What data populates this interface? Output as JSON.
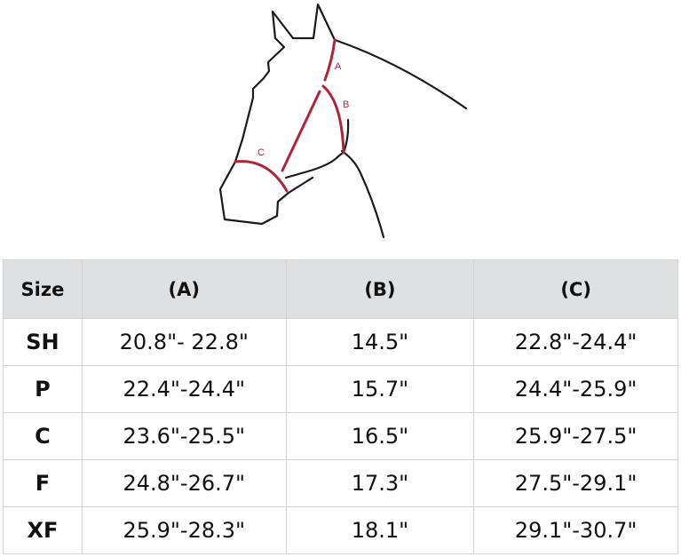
{
  "diagram": {
    "labels": {
      "a": "A",
      "b": "B",
      "c": "C"
    },
    "colors": {
      "outline": "#1a1a1a",
      "measure": "#b0243a"
    }
  },
  "table": {
    "headers": [
      "Size",
      "(A)",
      "(B)",
      "(C)"
    ],
    "rows": [
      [
        "SH",
        "20.8\"- 22.8\"",
        "14.5\"",
        "22.8\"-24.4\""
      ],
      [
        "P",
        "22.4\"-24.4\"",
        "15.7\"",
        "24.4\"-25.9\""
      ],
      [
        "C",
        "23.6\"-25.5\"",
        "16.5\"",
        "25.9\"-27.5\""
      ],
      [
        "F",
        "24.8\"-26.7\"",
        "17.3\"",
        "27.5\"-29.1\""
      ],
      [
        "XF",
        "25.9\"-28.3\"",
        "18.1\"",
        "29.1\"-30.7\""
      ]
    ]
  }
}
